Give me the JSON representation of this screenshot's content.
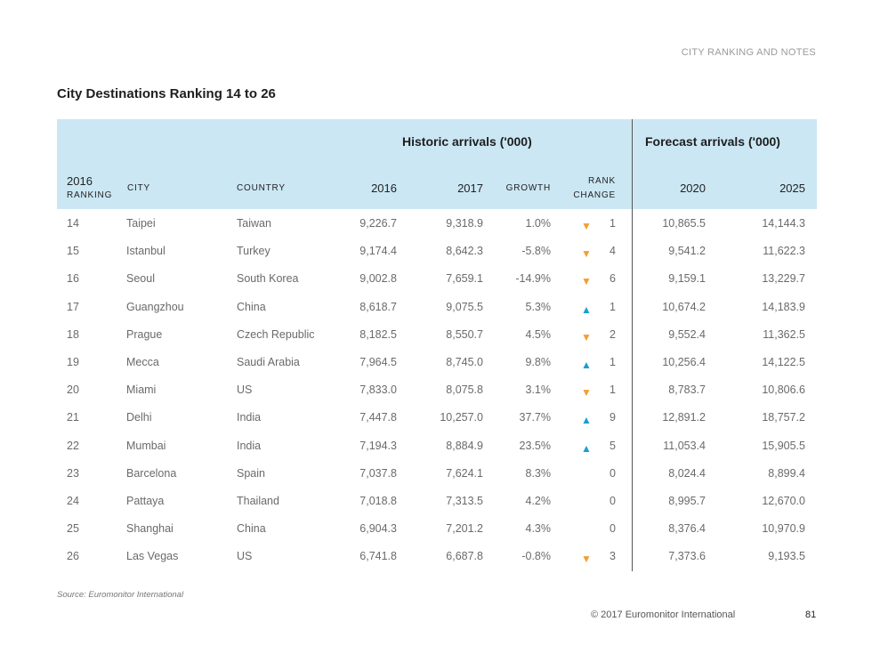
{
  "section_label": "CITY RANKING AND NOTES",
  "title": "City Destinations Ranking 14 to 26",
  "table": {
    "groups": {
      "historic": "Historic arrivals ('000)",
      "forecast": "Forecast arrivals ('000)"
    },
    "columns": {
      "rank_year": "2016",
      "rank_label": "RANKING",
      "city": "CITY",
      "country": "COUNTRY",
      "h2016": "2016",
      "h2017": "2017",
      "growth": "GROWTH",
      "rank_change_1": "RANK",
      "rank_change_2": "CHANGE",
      "f2020": "2020",
      "f2025": "2025"
    },
    "rows": [
      {
        "rank": "14",
        "city": "Taipei",
        "country": "Taiwan",
        "h2016": "9,226.7",
        "h2017": "9,318.9",
        "growth": "1.0%",
        "arrow": "▼",
        "dir": "down",
        "rank_change": "1",
        "f2020": "10,865.5",
        "f2025": "14,144.3"
      },
      {
        "rank": "15",
        "city": "Istanbul",
        "country": "Turkey",
        "h2016": "9,174.4",
        "h2017": "8,642.3",
        "growth": "-5.8%",
        "arrow": "▼",
        "dir": "down",
        "rank_change": "4",
        "f2020": "9,541.2",
        "f2025": "11,622.3"
      },
      {
        "rank": "16",
        "city": "Seoul",
        "country": "South Korea",
        "h2016": "9,002.8",
        "h2017": "7,659.1",
        "growth": "-14.9%",
        "arrow": "▼",
        "dir": "down",
        "rank_change": "6",
        "f2020": "9,159.1",
        "f2025": "13,229.7"
      },
      {
        "rank": "17",
        "city": "Guangzhou",
        "country": "China",
        "h2016": "8,618.7",
        "h2017": "9,075.5",
        "growth": "5.3%",
        "arrow": "▲",
        "dir": "up",
        "rank_change": "1",
        "f2020": "10,674.2",
        "f2025": "14,183.9"
      },
      {
        "rank": "18",
        "city": "Prague",
        "country": "Czech Republic",
        "h2016": "8,182.5",
        "h2017": "8,550.7",
        "growth": "4.5%",
        "arrow": "▼",
        "dir": "down",
        "rank_change": "2",
        "f2020": "9,552.4",
        "f2025": "11,362.5"
      },
      {
        "rank": "19",
        "city": "Mecca",
        "country": "Saudi Arabia",
        "h2016": "7,964.5",
        "h2017": "8,745.0",
        "growth": "9.8%",
        "arrow": "▲",
        "dir": "up",
        "rank_change": "1",
        "f2020": "10,256.4",
        "f2025": "14,122.5"
      },
      {
        "rank": "20",
        "city": "Miami",
        "country": "US",
        "h2016": "7,833.0",
        "h2017": "8,075.8",
        "growth": "3.1%",
        "arrow": "▼",
        "dir": "down",
        "rank_change": "1",
        "f2020": "8,783.7",
        "f2025": "10,806.6"
      },
      {
        "rank": "21",
        "city": "Delhi",
        "country": "India",
        "h2016": "7,447.8",
        "h2017": "10,257.0",
        "growth": "37.7%",
        "arrow": "▲",
        "dir": "up",
        "rank_change": "9",
        "f2020": "12,891.2",
        "f2025": "18,757.2"
      },
      {
        "rank": "22",
        "city": "Mumbai",
        "country": "India",
        "h2016": "7,194.3",
        "h2017": "8,884.9",
        "growth": "23.5%",
        "arrow": "▲",
        "dir": "up",
        "rank_change": "5",
        "f2020": "11,053.4",
        "f2025": "15,905.5"
      },
      {
        "rank": "23",
        "city": "Barcelona",
        "country": "Spain",
        "h2016": "7,037.8",
        "h2017": "7,624.1",
        "growth": "8.3%",
        "arrow": "",
        "dir": "none",
        "rank_change": "0",
        "f2020": "8,024.4",
        "f2025": "8,899.4"
      },
      {
        "rank": "24",
        "city": "Pattaya",
        "country": "Thailand",
        "h2016": "7,018.8",
        "h2017": "7,313.5",
        "growth": "4.2%",
        "arrow": "",
        "dir": "none",
        "rank_change": "0",
        "f2020": "8,995.7",
        "f2025": "12,670.0"
      },
      {
        "rank": "25",
        "city": "Shanghai",
        "country": "China",
        "h2016": "6,904.3",
        "h2017": "7,201.2",
        "growth": "4.3%",
        "arrow": "",
        "dir": "none",
        "rank_change": "0",
        "f2020": "8,376.4",
        "f2025": "10,970.9"
      },
      {
        "rank": "26",
        "city": "Las Vegas",
        "country": "US",
        "h2016": "6,741.8",
        "h2017": "6,687.8",
        "growth": "-0.8%",
        "arrow": "▼",
        "dir": "down",
        "rank_change": "3",
        "f2020": "7,373.6",
        "f2025": "9,193.5"
      }
    ]
  },
  "footer": {
    "source": "Source: Euromonitor International",
    "copyright": "© 2017 Euromonitor International",
    "page_number": "81"
  },
  "colors": {
    "header_bg": "#cbe7f4",
    "arrow_down": "#f0a030",
    "arrow_up": "#1a9fce"
  }
}
